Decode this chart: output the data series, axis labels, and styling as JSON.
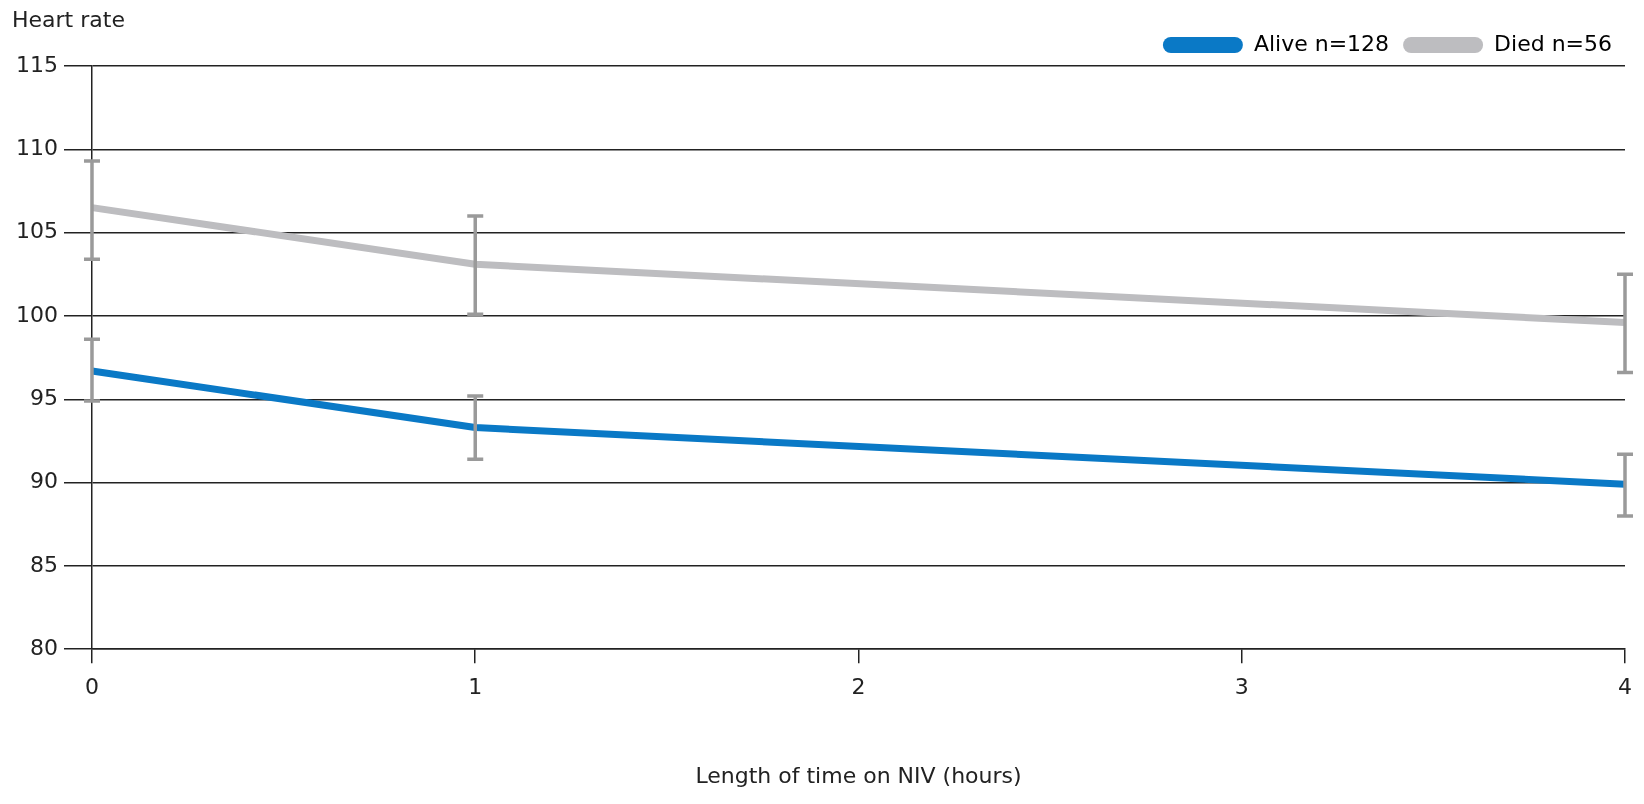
{
  "chart_data": {
    "type": "line",
    "ylabel": "Heart rate",
    "xlabel": "Length of time on NIV (hours)",
    "x": [
      0,
      1,
      4
    ],
    "series": [
      {
        "name": "Alive n=128",
        "color": "#0a79c6",
        "values": [
          96.7,
          93.3,
          89.9
        ],
        "errors": [
          [
            94.9,
            98.6
          ],
          [
            91.4,
            95.2
          ],
          [
            88.0,
            91.7
          ]
        ]
      },
      {
        "name": "Died n=56",
        "color": "#bdbdc0",
        "values": [
          106.5,
          103.1,
          99.6
        ],
        "errors": [
          [
            103.4,
            109.3
          ],
          [
            100.1,
            106.0
          ],
          [
            96.6,
            102.5
          ]
        ]
      }
    ],
    "xlim": [
      0,
      4
    ],
    "xticks": [
      0,
      1,
      2,
      3,
      4
    ],
    "ylim": [
      80,
      115
    ],
    "yticks": [
      80,
      85,
      90,
      95,
      100,
      105,
      110,
      115
    ],
    "grid": "y",
    "legend": "top right",
    "marker": "none",
    "line_style": "solid"
  }
}
